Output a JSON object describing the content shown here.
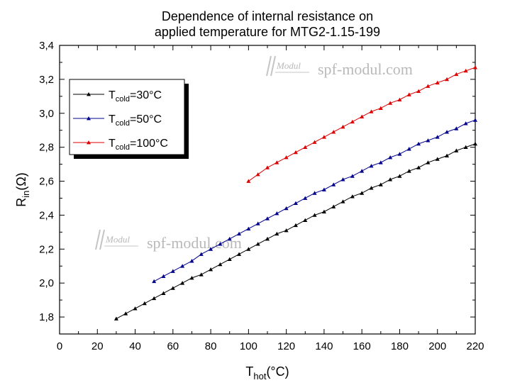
{
  "chart_data": {
    "type": "line",
    "title_lines": [
      "Dependence of internal resistance on",
      "applied temperature for MTG2-1.15-199"
    ],
    "xlabel": {
      "main": "T",
      "sub": "hot",
      "rest": "(°C)"
    },
    "ylabel": {
      "main": "R",
      "sub": "in",
      "rest": "(Ω)"
    },
    "xlim": [
      0,
      220
    ],
    "ylim": [
      1.7,
      3.4
    ],
    "xticks": [
      0,
      20,
      40,
      60,
      80,
      100,
      120,
      140,
      160,
      180,
      200,
      220
    ],
    "yticks": [
      1.8,
      2.0,
      2.2,
      2.4,
      2.6,
      2.8,
      3.0,
      3.2,
      3.4
    ],
    "yticklabels": [
      "1,8",
      "2,0",
      "2,2",
      "2,4",
      "2,6",
      "2,8",
      "3,0",
      "3,2",
      "3,4"
    ],
    "grid": false,
    "legend_position": "top-left",
    "series": [
      {
        "label": {
          "main": "T",
          "sub": "cold",
          "rest": "=30°C"
        },
        "color": "#000000",
        "x": [
          30,
          35,
          40,
          45,
          50,
          55,
          60,
          65,
          70,
          75,
          80,
          85,
          90,
          95,
          100,
          105,
          110,
          115,
          120,
          125,
          130,
          135,
          140,
          145,
          150,
          155,
          160,
          165,
          170,
          175,
          180,
          185,
          190,
          195,
          200,
          205,
          210,
          215,
          220
        ],
        "y": [
          1.79,
          1.82,
          1.85,
          1.88,
          1.91,
          1.94,
          1.97,
          2.0,
          2.03,
          2.05,
          2.08,
          2.11,
          2.14,
          2.17,
          2.2,
          2.23,
          2.26,
          2.29,
          2.31,
          2.34,
          2.37,
          2.4,
          2.42,
          2.45,
          2.48,
          2.51,
          2.53,
          2.56,
          2.58,
          2.61,
          2.63,
          2.66,
          2.68,
          2.71,
          2.73,
          2.75,
          2.78,
          2.8,
          2.82
        ]
      },
      {
        "label": {
          "main": "T",
          "sub": "cold",
          "rest": "=50°C"
        },
        "color": "#00008b",
        "x": [
          50,
          55,
          60,
          65,
          70,
          75,
          80,
          85,
          90,
          95,
          100,
          105,
          110,
          115,
          120,
          125,
          130,
          135,
          140,
          145,
          150,
          155,
          160,
          165,
          170,
          175,
          180,
          185,
          190,
          195,
          200,
          205,
          210,
          215,
          220
        ],
        "y": [
          2.01,
          2.04,
          2.07,
          2.1,
          2.13,
          2.17,
          2.2,
          2.23,
          2.26,
          2.29,
          2.32,
          2.35,
          2.38,
          2.41,
          2.44,
          2.47,
          2.5,
          2.53,
          2.55,
          2.58,
          2.61,
          2.63,
          2.66,
          2.69,
          2.71,
          2.74,
          2.76,
          2.79,
          2.82,
          2.84,
          2.86,
          2.89,
          2.91,
          2.94,
          2.96
        ]
      },
      {
        "label": {
          "main": "T",
          "sub": "cold",
          "rest": "=100°C"
        },
        "color": "#dd0000",
        "x": [
          100,
          105,
          110,
          115,
          120,
          125,
          130,
          135,
          140,
          145,
          150,
          155,
          160,
          165,
          170,
          175,
          180,
          185,
          190,
          195,
          200,
          205,
          210,
          215,
          220
        ],
        "y": [
          2.6,
          2.64,
          2.68,
          2.71,
          2.74,
          2.77,
          2.8,
          2.83,
          2.86,
          2.89,
          2.92,
          2.95,
          2.98,
          3.01,
          3.03,
          3.06,
          3.08,
          3.11,
          3.13,
          3.16,
          3.18,
          3.2,
          3.23,
          3.25,
          3.27
        ]
      }
    ]
  },
  "watermark": {
    "logo_text": "Modul",
    "site_text": "spf-modul.com"
  }
}
